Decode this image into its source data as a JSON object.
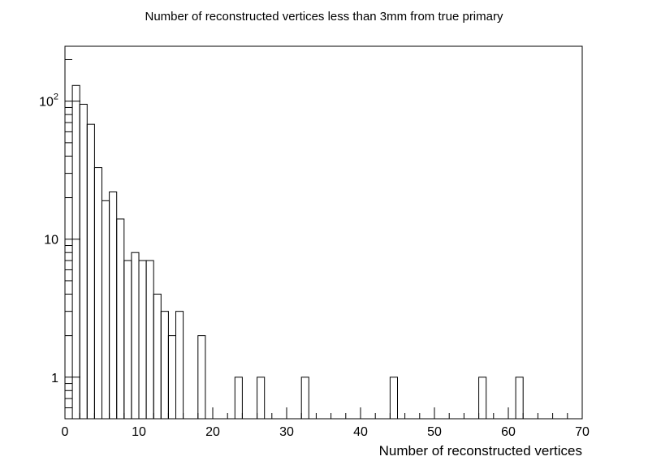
{
  "chart_data": {
    "type": "bar",
    "title": "Number of reconstructed vertices less than 3mm from true primary",
    "xlabel": "Number of reconstructed vertices",
    "ylabel": "",
    "xlim": [
      0,
      70
    ],
    "ylim": [
      0.5,
      250
    ],
    "yscale": "log",
    "bin_width": 1,
    "grid": false,
    "x_ticks": [
      "0",
      "10",
      "20",
      "30",
      "40",
      "50",
      "60",
      "70"
    ],
    "y_ticks": [
      {
        "value": 1,
        "base": "1",
        "exp": ""
      },
      {
        "value": 10,
        "base": "10",
        "exp": ""
      },
      {
        "value": 100,
        "base": "10",
        "exp": "2"
      }
    ],
    "bins": [
      {
        "low": 1,
        "count": 130
      },
      {
        "low": 2,
        "count": 95
      },
      {
        "low": 3,
        "count": 68
      },
      {
        "low": 4,
        "count": 33
      },
      {
        "low": 5,
        "count": 19
      },
      {
        "low": 6,
        "count": 22
      },
      {
        "low": 7,
        "count": 14
      },
      {
        "low": 8,
        "count": 7
      },
      {
        "low": 9,
        "count": 8
      },
      {
        "low": 10,
        "count": 7
      },
      {
        "low": 11,
        "count": 7
      },
      {
        "low": 12,
        "count": 4
      },
      {
        "low": 13,
        "count": 3
      },
      {
        "low": 14,
        "count": 2
      },
      {
        "low": 15,
        "count": 3
      },
      {
        "low": 18,
        "count": 2
      },
      {
        "low": 23,
        "count": 1
      },
      {
        "low": 26,
        "count": 1
      },
      {
        "low": 32,
        "count": 1
      },
      {
        "low": 44,
        "count": 1
      },
      {
        "low": 56,
        "count": 1
      },
      {
        "low": 61,
        "count": 1
      }
    ]
  }
}
